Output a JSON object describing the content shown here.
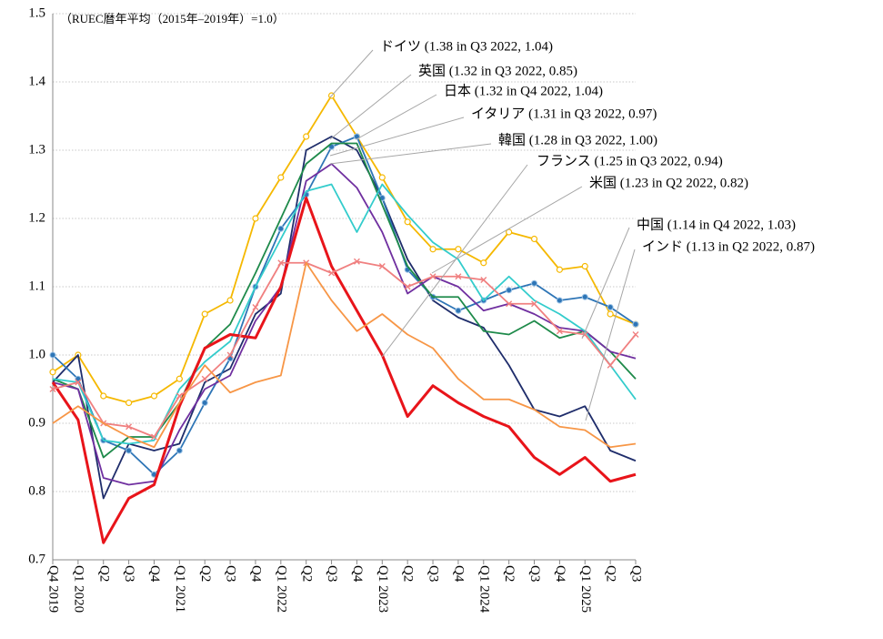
{
  "chart_data": {
    "type": "line",
    "subtitle": "（RUEC暦年平均（2015年‒2019年）=1.0）",
    "categories": [
      "Q4 2019",
      "Q1 2020",
      "Q2",
      "Q3",
      "Q4",
      "Q1 2021",
      "Q2",
      "Q3",
      "Q4",
      "Q1 2022",
      "Q2",
      "Q3",
      "Q4",
      "Q1 2023",
      "Q2",
      "Q3",
      "Q4",
      "Q1 2024",
      "Q2",
      "Q3",
      "Q4",
      "Q1 2025",
      "Q2",
      "Q3"
    ],
    "ylim": [
      0.7,
      1.5
    ],
    "yticks": [
      0.7,
      0.8,
      0.9,
      {
        "value": 1,
        "label": "1.0"
      },
      1.1,
      1.2,
      1.3,
      1.4,
      1.5
    ],
    "grid": true,
    "series": [
      {
        "name": "ドイツ",
        "color": "#f5b800",
        "marker": "open-circle",
        "values": [
          0.975,
          1.0,
          0.94,
          0.93,
          0.94,
          0.965,
          1.06,
          1.08,
          1.2,
          1.26,
          1.32,
          1.38,
          1.32,
          1.26,
          1.195,
          1.155,
          1.155,
          1.135,
          1.18,
          1.17,
          1.125,
          1.13,
          1.06,
          1.045
        ]
      },
      {
        "name": "英国",
        "color": "#1f2d6b",
        "values": [
          0.96,
          1.0,
          0.79,
          0.87,
          0.86,
          0.87,
          0.96,
          0.98,
          1.06,
          1.09,
          1.3,
          1.32,
          1.3,
          1.23,
          1.14,
          1.08,
          1.055,
          1.04,
          0.985,
          0.92,
          0.91,
          0.925,
          0.86,
          0.845
        ]
      },
      {
        "name": "日本",
        "color": "#2e75b6",
        "marker": "filled-circle",
        "values": [
          1.0,
          0.965,
          0.875,
          0.86,
          0.825,
          0.86,
          0.93,
          0.995,
          1.1,
          1.185,
          1.235,
          1.305,
          1.32,
          1.23,
          1.125,
          1.085,
          1.065,
          1.08,
          1.095,
          1.105,
          1.08,
          1.085,
          1.07,
          1.045
        ]
      },
      {
        "name": "イタリア",
        "color": "#1e8a4a",
        "values": [
          0.965,
          0.95,
          0.85,
          0.88,
          0.88,
          0.93,
          1.01,
          1.045,
          1.12,
          1.2,
          1.28,
          1.31,
          1.31,
          1.22,
          1.13,
          1.085,
          1.085,
          1.035,
          1.03,
          1.05,
          1.025,
          1.035,
          1.005,
          0.965
        ]
      },
      {
        "name": "韓国",
        "color": "#7030a0",
        "values": [
          0.96,
          0.95,
          0.82,
          0.81,
          0.815,
          0.89,
          0.95,
          0.97,
          1.05,
          1.1,
          1.255,
          1.28,
          1.245,
          1.18,
          1.09,
          1.115,
          1.1,
          1.065,
          1.075,
          1.06,
          1.04,
          1.035,
          1.005,
          0.995
        ]
      },
      {
        "name": "フランス",
        "color": "#33cccc",
        "values": [
          0.965,
          0.96,
          0.875,
          0.87,
          0.875,
          0.95,
          0.99,
          1.02,
          1.1,
          1.17,
          1.24,
          1.25,
          1.18,
          1.25,
          1.205,
          1.165,
          1.14,
          1.08,
          1.115,
          1.08,
          1.06,
          1.035,
          0.985,
          0.935
        ]
      },
      {
        "name": "米国",
        "color": "#e8141a",
        "width": 3,
        "values": [
          0.96,
          0.905,
          0.725,
          0.79,
          0.81,
          0.925,
          1.01,
          1.03,
          1.025,
          1.1,
          1.23,
          1.13,
          1.065,
          1.0,
          0.91,
          0.955,
          0.93,
          0.91,
          0.895,
          0.85,
          0.825,
          0.85,
          0.815,
          0.825
        ]
      },
      {
        "name": "中国",
        "color": "#f08080",
        "marker": "cross",
        "values": [
          0.95,
          0.96,
          0.9,
          0.895,
          0.88,
          0.94,
          0.965,
          1.0,
          1.07,
          1.135,
          1.135,
          1.12,
          1.137,
          1.13,
          1.1,
          1.115,
          1.115,
          1.11,
          1.075,
          1.075,
          1.035,
          1.03,
          0.985,
          1.03
        ]
      },
      {
        "name": "インド",
        "color": "#f79646",
        "values": [
          0.9,
          0.925,
          0.9,
          0.88,
          0.865,
          0.93,
          0.985,
          0.945,
          0.96,
          0.97,
          1.135,
          1.08,
          1.035,
          1.06,
          1.03,
          1.01,
          0.965,
          0.935,
          0.935,
          0.92,
          0.895,
          0.89,
          0.865,
          0.87
        ]
      }
    ],
    "annotations": [
      "ドイツ (1.38 in Q3 2022, 1.04)",
      "英国 (1.32 in Q3 2022, 0.85)",
      "日本 (1.32 in Q4 2022, 1.04)",
      "イタリア (1.31 in Q3 2022, 0.97)",
      "韓国 (1.28 in Q3 2022, 1.00)",
      "フランス (1.25 in Q3 2022, 0.94)",
      "米国 (1.23 in Q2 2022, 0.82)",
      "中国 (1.14 in Q4 2022, 1.03)",
      "インド (1.13 in Q2 2022, 0.87)"
    ]
  }
}
